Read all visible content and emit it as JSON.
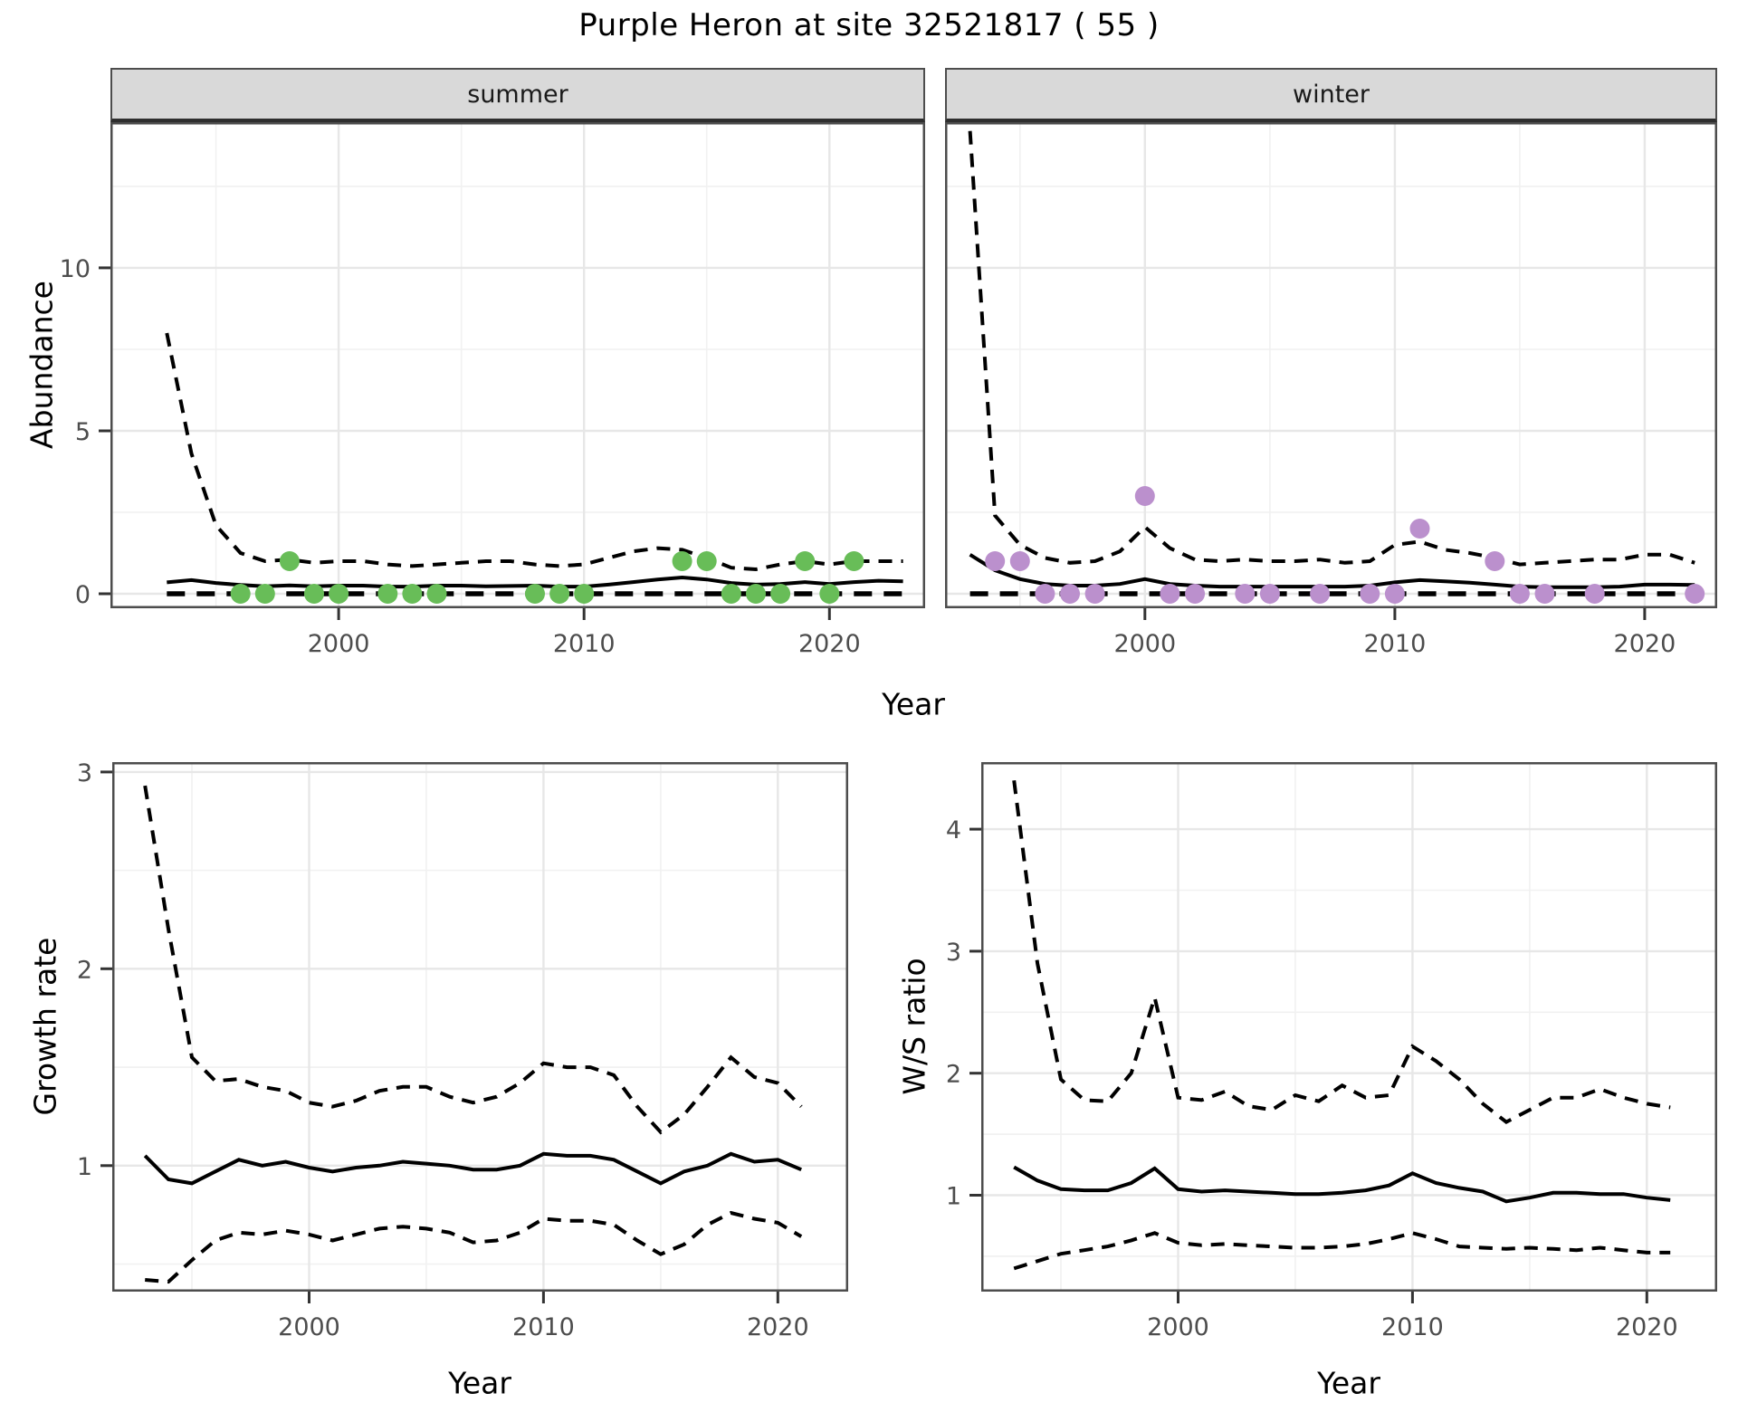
{
  "title": "Purple Heron at site 32521817 ( 55 )",
  "colors": {
    "summer_points": "#68BD58",
    "winter_points": "#BB90CD",
    "line": "#000000",
    "grid_major": "#E7E7E7",
    "grid_minor": "#F1F1F1",
    "panel_border": "#4D4D4D",
    "strip_fill": "#D9D9D9",
    "axis_text": "#4D4D4D"
  },
  "chart_data": [
    {
      "id": "abundance-summer",
      "type": "line",
      "strip": "summer",
      "ylabel": "Abundance",
      "xlabel": "Year",
      "xlim": [
        1990.7,
        2023.9
      ],
      "ylim": [
        -0.444,
        14.47
      ],
      "xticks": [
        2000,
        2010,
        2020
      ],
      "yticks": [
        0,
        5,
        10
      ],
      "x_minor": [
        1995,
        2005,
        2015
      ],
      "y_minor": [
        2.5,
        7.5,
        12.5
      ],
      "y_axis": true,
      "legend_position": "none",
      "series": [
        {
          "name": "fitted-mean",
          "style": "solid",
          "years": [
            1993,
            1994,
            1995,
            1996,
            1997,
            1998,
            1999,
            2000,
            2001,
            2002,
            2003,
            2004,
            2005,
            2006,
            2007,
            2008,
            2009,
            2010,
            2011,
            2012,
            2013,
            2014,
            2015,
            2016,
            2017,
            2018,
            2019,
            2020,
            2021,
            2022,
            2023
          ],
          "values": [
            0.35,
            0.42,
            0.33,
            0.27,
            0.23,
            0.26,
            0.23,
            0.25,
            0.25,
            0.22,
            0.22,
            0.25,
            0.25,
            0.23,
            0.24,
            0.25,
            0.22,
            0.22,
            0.28,
            0.36,
            0.44,
            0.5,
            0.44,
            0.33,
            0.28,
            0.3,
            0.36,
            0.3,
            0.36,
            0.4,
            0.38
          ]
        },
        {
          "name": "upper-95ci",
          "style": "dashed",
          "years": [
            1993,
            1994,
            1995,
            1996,
            1997,
            1998,
            1999,
            2000,
            2001,
            2002,
            2003,
            2004,
            2005,
            2006,
            2007,
            2008,
            2009,
            2010,
            2011,
            2012,
            2013,
            2014,
            2015,
            2016,
            2017,
            2018,
            2019,
            2020,
            2021,
            2022,
            2023
          ],
          "values": [
            8.0,
            4.3,
            2.1,
            1.25,
            1.0,
            1.05,
            0.95,
            1.0,
            1.0,
            0.9,
            0.85,
            0.9,
            0.95,
            1.0,
            1.0,
            0.9,
            0.85,
            0.9,
            1.1,
            1.3,
            1.4,
            1.35,
            1.1,
            0.8,
            0.75,
            0.9,
            1.0,
            0.9,
            1.0,
            1.0,
            1.0
          ]
        },
        {
          "name": "lower-95ci",
          "style": "dashed-zero",
          "years": [
            1993,
            1994,
            1995,
            1996,
            1997,
            1998,
            1999,
            2000,
            2001,
            2002,
            2003,
            2004,
            2005,
            2006,
            2007,
            2008,
            2009,
            2010,
            2011,
            2012,
            2013,
            2014,
            2015,
            2016,
            2017,
            2018,
            2019,
            2020,
            2021,
            2022,
            2023
          ],
          "values": [
            0,
            0,
            0,
            0,
            0,
            0,
            0,
            0,
            0,
            0,
            0,
            0,
            0,
            0,
            0,
            0,
            0,
            0,
            0,
            0,
            0,
            0,
            0,
            0,
            0,
            0,
            0,
            0,
            0,
            0,
            0
          ]
        }
      ],
      "points": {
        "name": "observed-counts-summer",
        "color": "#68BD58",
        "years": [
          1996,
          1997,
          1998,
          1999,
          2000,
          2002,
          2003,
          2004,
          2008,
          2009,
          2010,
          2014,
          2015,
          2016,
          2017,
          2018,
          2019,
          2020,
          2021
        ],
        "values": [
          0,
          0,
          1,
          0,
          0,
          0,
          0,
          0,
          0,
          0,
          0,
          1,
          1,
          0,
          0,
          0,
          1,
          0,
          1
        ]
      }
    },
    {
      "id": "abundance-winter",
      "type": "line",
      "strip": "winter",
      "ylabel": "Abundance",
      "xlabel": "Year",
      "xlim": [
        1992.0,
        2022.9
      ],
      "ylim": [
        -0.444,
        14.47
      ],
      "xticks": [
        2000,
        2010,
        2020
      ],
      "yticks": [
        0,
        5,
        10
      ],
      "x_minor": [
        1995,
        2005,
        2015
      ],
      "y_minor": [
        2.5,
        7.5,
        12.5
      ],
      "y_axis": false,
      "legend_position": "none",
      "series": [
        {
          "name": "fitted-mean",
          "style": "solid",
          "years": [
            1993,
            1994,
            1995,
            1996,
            1997,
            1998,
            1999,
            2000,
            2001,
            2002,
            2003,
            2004,
            2005,
            2006,
            2007,
            2008,
            2009,
            2010,
            2011,
            2012,
            2013,
            2014,
            2015,
            2016,
            2017,
            2018,
            2019,
            2020,
            2021,
            2022
          ],
          "values": [
            1.2,
            0.72,
            0.45,
            0.3,
            0.25,
            0.25,
            0.3,
            0.45,
            0.3,
            0.25,
            0.22,
            0.22,
            0.22,
            0.22,
            0.22,
            0.22,
            0.25,
            0.35,
            0.42,
            0.38,
            0.34,
            0.28,
            0.22,
            0.2,
            0.2,
            0.2,
            0.22,
            0.28,
            0.28,
            0.27
          ]
        },
        {
          "name": "upper-95ci",
          "style": "dashed",
          "years": [
            1993,
            1994,
            1995,
            1996,
            1997,
            1998,
            1999,
            2000,
            2001,
            2002,
            2003,
            2004,
            2005,
            2006,
            2007,
            2008,
            2009,
            2010,
            2011,
            2012,
            2013,
            2014,
            2015,
            2016,
            2017,
            2018,
            2019,
            2020,
            2021,
            2022
          ],
          "values": [
            14.2,
            2.4,
            1.5,
            1.1,
            0.95,
            1.0,
            1.3,
            2.05,
            1.4,
            1.05,
            1.0,
            1.05,
            1.0,
            1.0,
            1.05,
            0.95,
            1.0,
            1.5,
            1.6,
            1.35,
            1.25,
            1.1,
            0.9,
            0.95,
            1.0,
            1.05,
            1.05,
            1.2,
            1.2,
            0.95
          ]
        },
        {
          "name": "lower-95ci",
          "style": "dashed-zero",
          "years": [
            1993,
            1994,
            1995,
            1996,
            1997,
            1998,
            1999,
            2000,
            2001,
            2002,
            2003,
            2004,
            2005,
            2006,
            2007,
            2008,
            2009,
            2010,
            2011,
            2012,
            2013,
            2014,
            2015,
            2016,
            2017,
            2018,
            2019,
            2020,
            2021,
            2022
          ],
          "values": [
            0,
            0,
            0,
            0,
            0,
            0,
            0,
            0,
            0,
            0,
            0,
            0,
            0,
            0,
            0,
            0,
            0,
            0,
            0,
            0,
            0,
            0,
            0,
            0,
            0,
            0,
            0,
            0,
            0,
            0
          ]
        }
      ],
      "points": {
        "name": "observed-counts-winter",
        "color": "#BB90CD",
        "years": [
          1994,
          1995,
          1996,
          1997,
          1998,
          2000,
          2001,
          2002,
          2004,
          2005,
          2007,
          2009,
          2010,
          2011,
          2014,
          2015,
          2016,
          2018,
          2022
        ],
        "values": [
          1,
          1,
          0,
          0,
          0,
          3,
          0,
          0,
          0,
          0,
          0,
          0,
          0,
          2,
          1,
          0,
          0,
          0,
          0
        ]
      }
    },
    {
      "id": "growth-rate",
      "type": "line",
      "strip": "",
      "ylabel": "Growth rate",
      "xlabel": "Year",
      "xlim": [
        1991.6,
        2023.0
      ],
      "ylim": [
        0.36,
        3.05
      ],
      "xticks": [
        2000,
        2010,
        2020
      ],
      "yticks": [
        1,
        2,
        3
      ],
      "x_minor": [
        1995,
        2005,
        2015
      ],
      "y_minor": [
        0.5,
        1.5,
        2.5
      ],
      "y_axis": true,
      "legend_position": "none",
      "series": [
        {
          "name": "fitted-mean",
          "style": "solid",
          "years": [
            1993,
            1994,
            1995,
            1996,
            1997,
            1998,
            1999,
            2000,
            2001,
            2002,
            2003,
            2004,
            2005,
            2006,
            2007,
            2008,
            2009,
            2010,
            2011,
            2012,
            2013,
            2014,
            2015,
            2016,
            2017,
            2018,
            2019,
            2020,
            2021
          ],
          "values": [
            1.05,
            0.93,
            0.91,
            0.97,
            1.03,
            1.0,
            1.02,
            0.99,
            0.97,
            0.99,
            1.0,
            1.02,
            1.01,
            1.0,
            0.98,
            0.98,
            1.0,
            1.06,
            1.05,
            1.05,
            1.03,
            0.97,
            0.91,
            0.97,
            1.0,
            1.06,
            1.02,
            1.03,
            0.98
          ]
        },
        {
          "name": "upper-95ci",
          "style": "dashed",
          "years": [
            1993,
            1994,
            1995,
            1996,
            1997,
            1998,
            1999,
            2000,
            2001,
            2002,
            2003,
            2004,
            2005,
            2006,
            2007,
            2008,
            2009,
            2010,
            2011,
            2012,
            2013,
            2014,
            2015,
            2016,
            2017,
            2018,
            2019,
            2020,
            2021
          ],
          "values": [
            2.93,
            2.2,
            1.55,
            1.43,
            1.44,
            1.4,
            1.38,
            1.32,
            1.3,
            1.33,
            1.38,
            1.4,
            1.4,
            1.35,
            1.32,
            1.35,
            1.42,
            1.52,
            1.5,
            1.5,
            1.46,
            1.3,
            1.17,
            1.26,
            1.4,
            1.55,
            1.45,
            1.42,
            1.3
          ]
        },
        {
          "name": "lower-95ci",
          "style": "dashed",
          "years": [
            1993,
            1994,
            1995,
            1996,
            1997,
            1998,
            1999,
            2000,
            2001,
            2002,
            2003,
            2004,
            2005,
            2006,
            2007,
            2008,
            2009,
            2010,
            2011,
            2012,
            2013,
            2014,
            2015,
            2016,
            2017,
            2018,
            2019,
            2020,
            2021
          ],
          "values": [
            0.42,
            0.41,
            0.52,
            0.62,
            0.66,
            0.65,
            0.67,
            0.65,
            0.62,
            0.65,
            0.68,
            0.69,
            0.68,
            0.66,
            0.61,
            0.62,
            0.66,
            0.73,
            0.72,
            0.72,
            0.7,
            0.62,
            0.55,
            0.6,
            0.7,
            0.76,
            0.73,
            0.71,
            0.64
          ]
        }
      ]
    },
    {
      "id": "ws-ratio",
      "type": "line",
      "strip": "",
      "ylabel": "W/S ratio",
      "xlabel": "Year",
      "xlim": [
        1991.6,
        2023.0
      ],
      "ylim": [
        0.21,
        4.55
      ],
      "xticks": [
        2000,
        2010,
        2020
      ],
      "yticks": [
        1,
        2,
        3,
        4
      ],
      "x_minor": [
        1995,
        2005,
        2015
      ],
      "y_minor": [
        0.5,
        1.5,
        2.5,
        3.5
      ],
      "y_axis": true,
      "legend_position": "none",
      "series": [
        {
          "name": "fitted-mean",
          "style": "solid",
          "years": [
            1993,
            1994,
            1995,
            1996,
            1997,
            1998,
            1999,
            2000,
            2001,
            2002,
            2003,
            2004,
            2005,
            2006,
            2007,
            2008,
            2009,
            2010,
            2011,
            2012,
            2013,
            2014,
            2015,
            2016,
            2017,
            2018,
            2019,
            2020,
            2021
          ],
          "values": [
            1.23,
            1.12,
            1.05,
            1.04,
            1.04,
            1.1,
            1.22,
            1.05,
            1.03,
            1.04,
            1.03,
            1.02,
            1.01,
            1.01,
            1.02,
            1.04,
            1.08,
            1.18,
            1.1,
            1.06,
            1.03,
            0.95,
            0.98,
            1.02,
            1.02,
            1.01,
            1.01,
            0.98,
            0.96
          ]
        },
        {
          "name": "upper-95ci",
          "style": "dashed",
          "years": [
            1993,
            1994,
            1995,
            1996,
            1997,
            1998,
            1999,
            2000,
            2001,
            2002,
            2003,
            2004,
            2005,
            2006,
            2007,
            2008,
            2009,
            2010,
            2011,
            2012,
            2013,
            2014,
            2015,
            2016,
            2017,
            2018,
            2019,
            2020,
            2021
          ],
          "values": [
            4.4,
            2.9,
            1.95,
            1.78,
            1.77,
            2.0,
            2.62,
            1.8,
            1.78,
            1.85,
            1.73,
            1.7,
            1.82,
            1.77,
            1.9,
            1.8,
            1.82,
            2.22,
            2.1,
            1.95,
            1.75,
            1.6,
            1.7,
            1.8,
            1.8,
            1.87,
            1.8,
            1.75,
            1.72
          ]
        },
        {
          "name": "lower-95ci",
          "style": "dashed",
          "years": [
            1993,
            1994,
            1995,
            1996,
            1997,
            1998,
            1999,
            2000,
            2001,
            2002,
            2003,
            2004,
            2005,
            2006,
            2007,
            2008,
            2009,
            2010,
            2011,
            2012,
            2013,
            2014,
            2015,
            2016,
            2017,
            2018,
            2019,
            2020,
            2021
          ],
          "values": [
            0.4,
            0.46,
            0.52,
            0.55,
            0.58,
            0.63,
            0.69,
            0.61,
            0.59,
            0.6,
            0.59,
            0.58,
            0.57,
            0.57,
            0.58,
            0.6,
            0.64,
            0.69,
            0.64,
            0.58,
            0.57,
            0.56,
            0.57,
            0.56,
            0.55,
            0.57,
            0.55,
            0.53,
            0.53
          ]
        }
      ]
    }
  ]
}
